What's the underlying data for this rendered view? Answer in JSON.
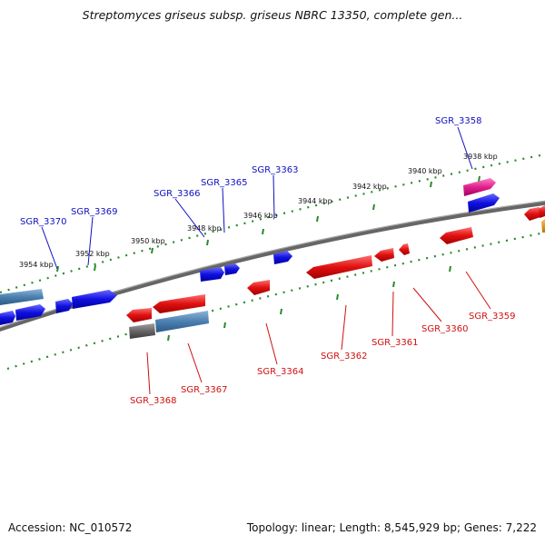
{
  "title": "Streptomyces griseus subsp. griseus NBRC 13350, complete gen...",
  "footer": {
    "accession": "Accession: NC_010572",
    "summary": "Topology: linear; Length: 8,545,929 bp; Genes: 7,222"
  },
  "colors": {
    "forward_gene": "#1010e0",
    "reverse_gene": "#e01010",
    "steel_feature": "#4a7fb0",
    "pink_feature": "#e0208c",
    "gray_feature": "#666666",
    "orange_feature": "#e89000",
    "backbone": "#777777",
    "ruler": "#2a8a2a",
    "forward_label": "#1010c0",
    "reverse_label": "#d01010"
  },
  "scale_labels": [
    "3938 kbp",
    "3940 kbp",
    "3942 kbp",
    "3944 kbp",
    "3946 kbp",
    "3948 kbp",
    "3950 kbp",
    "3952 kbp",
    "3954 kbp"
  ],
  "forward_labels": [
    "SGR_3358",
    "SGR_3363",
    "SGR_3365",
    "SGR_3366",
    "SGR_3369",
    "SGR_3370"
  ],
  "reverse_labels": [
    "SGR_3359",
    "SGR_3360",
    "SGR_3361",
    "SGR_3362",
    "SGR_3364",
    "SGR_3367",
    "SGR_3368"
  ]
}
